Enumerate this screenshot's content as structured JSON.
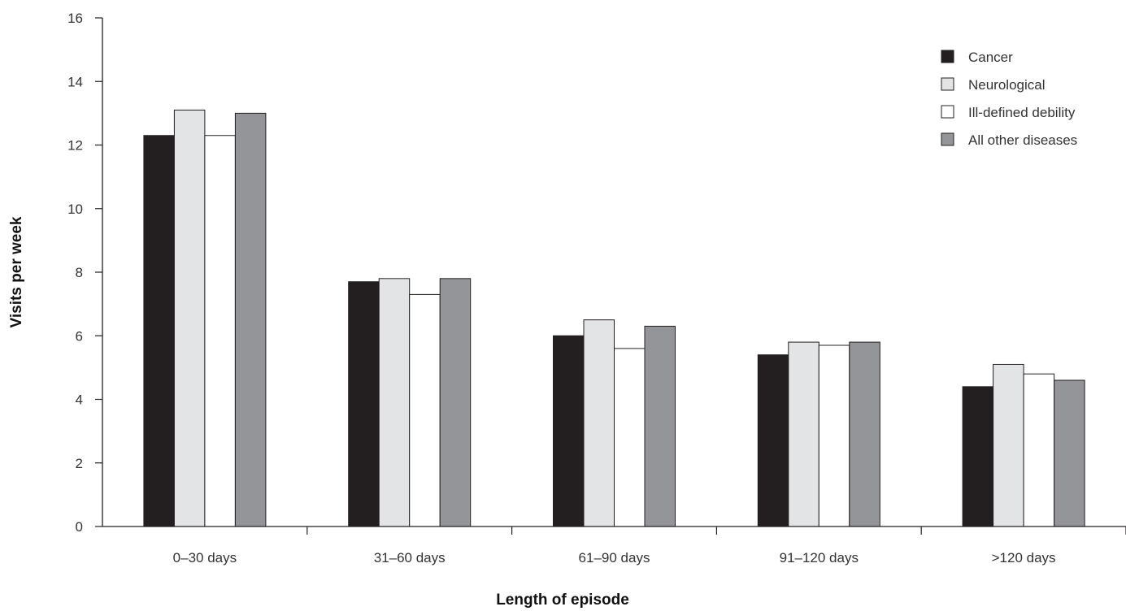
{
  "chart_data": {
    "type": "bar",
    "xlabel": "Length of episode",
    "ylabel": "Visits per week",
    "ylim": [
      0,
      16
    ],
    "yticks": [
      0,
      2,
      4,
      6,
      8,
      10,
      12,
      14,
      16
    ],
    "categories": [
      "0–30 days",
      "31–60 days",
      "61–90 days",
      "91–120 days",
      ">120 days"
    ],
    "series": [
      {
        "name": "Cancer",
        "color": "#231f20",
        "values": [
          12.3,
          7.7,
          6.0,
          5.4,
          4.4
        ]
      },
      {
        "name": "Neurological",
        "color": "#e3e4e6",
        "values": [
          13.1,
          7.8,
          6.5,
          5.8,
          5.1
        ]
      },
      {
        "name": "Ill-defined debility",
        "color": "#ffffff",
        "values": [
          12.3,
          7.3,
          5.6,
          5.7,
          4.8
        ]
      },
      {
        "name": "All other diseases",
        "color": "#939598",
        "values": [
          13.0,
          7.8,
          6.3,
          5.8,
          4.6
        ]
      }
    ],
    "grid": false,
    "legend_position": "top-right"
  }
}
